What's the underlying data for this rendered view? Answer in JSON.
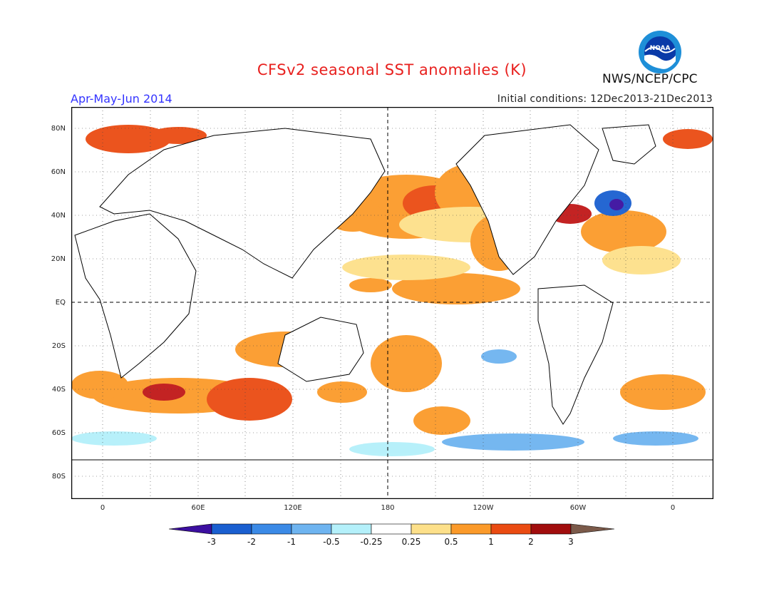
{
  "title": "CFSv2 seasonal SST anomalies (K)",
  "period": "Apr-May-Jun 2014",
  "initial_conditions": "Initial conditions: 12Dec2013-21Dec2013",
  "agency": "NWS/NCEP/CPC",
  "logo_text": "NOAA",
  "colors": {
    "title": "#e8201e",
    "period": "#3333ff"
  },
  "lat_labels": [
    "80N",
    "60N",
    "40N",
    "20N",
    "EQ",
    "20S",
    "40S",
    "60S",
    "80S"
  ],
  "lon_labels": [
    "0",
    "60E",
    "120E",
    "180",
    "120W",
    "60W",
    "0"
  ],
  "colorbar": {
    "labels": [
      "-3",
      "-2",
      "-1",
      "-0.5",
      "-0.25",
      "0.25",
      "0.5",
      "1",
      "2",
      "3"
    ],
    "colors": [
      "#3c0fa0",
      "#1a5fd0",
      "#3b8ae6",
      "#6eb4f0",
      "#b4f0fa",
      "#ffffff",
      "#fde08a",
      "#fb9a2a",
      "#ea4b12",
      "#c01818",
      "#a10d0d",
      "#7b5a4a"
    ]
  }
}
